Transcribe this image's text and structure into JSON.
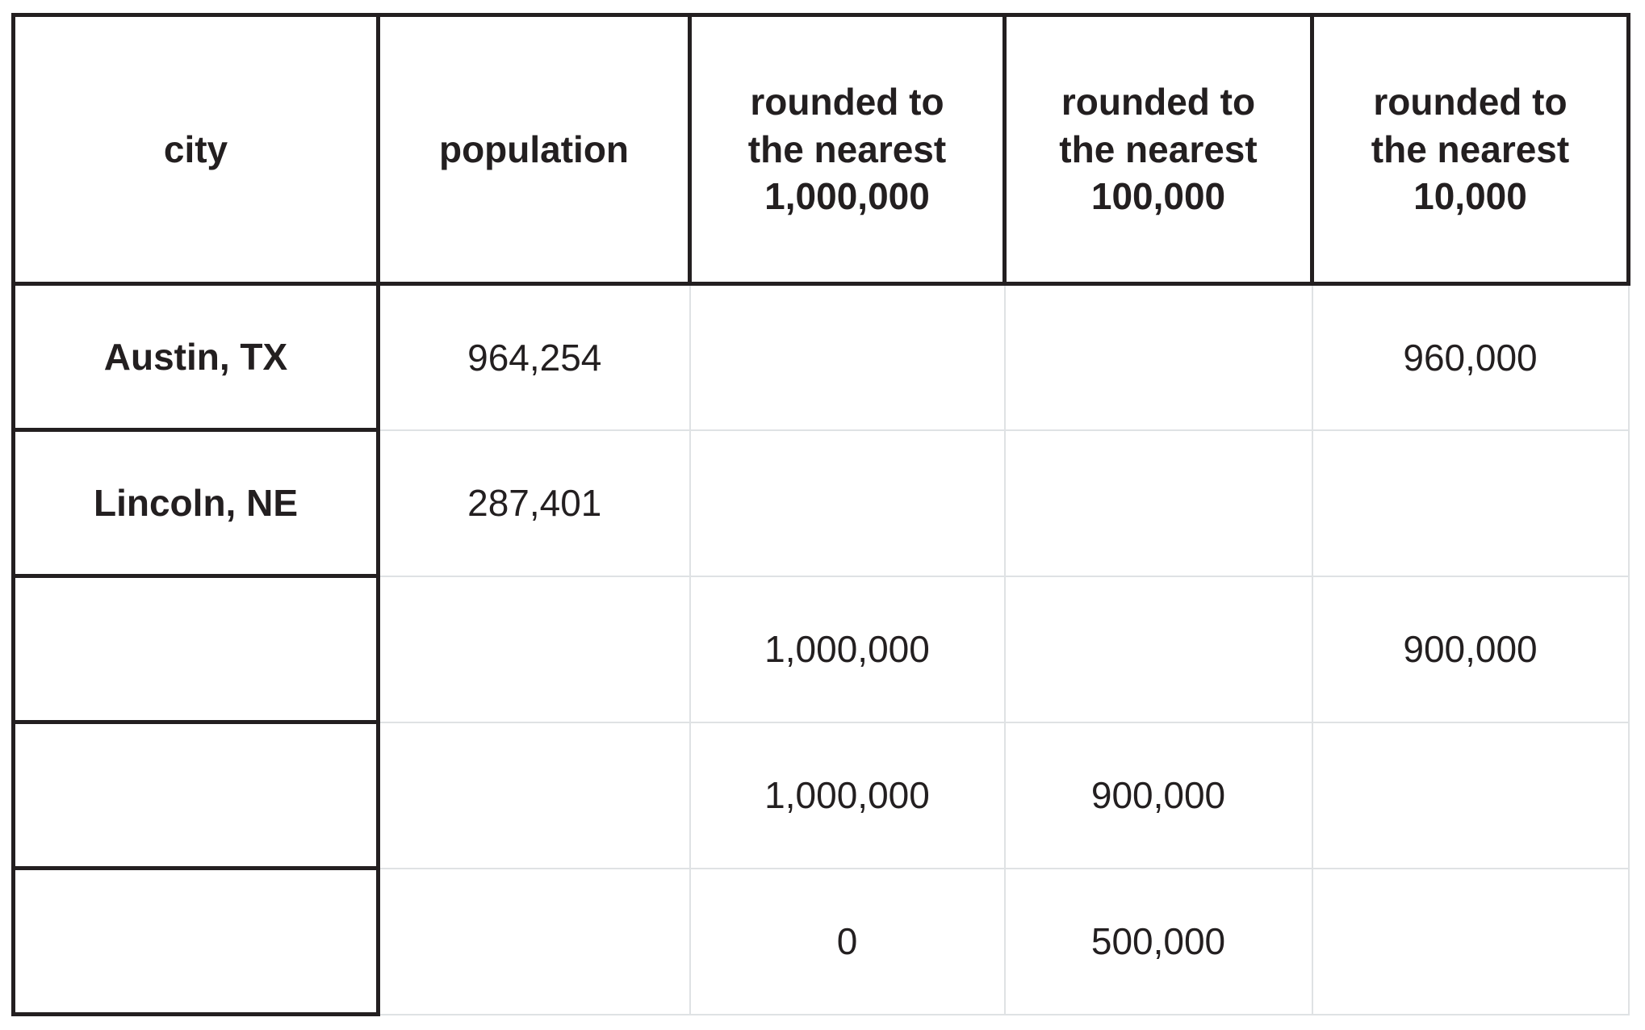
{
  "colors": {
    "text": "#231f20",
    "strong_border": "#231f20",
    "light_border": "#dfe2e4",
    "background": "#ffffff"
  },
  "table": {
    "columns": [
      {
        "key": "city",
        "label": "city",
        "lines": [
          "city"
        ]
      },
      {
        "key": "population",
        "label": "population",
        "lines": [
          "population"
        ]
      },
      {
        "key": "nearest_1000000",
        "label": "rounded to the nearest 1,000,000",
        "lines": [
          "rounded to",
          "the nearest",
          "1,000,000"
        ]
      },
      {
        "key": "nearest_100000",
        "label": "rounded to the nearest 100,000",
        "lines": [
          "rounded to",
          "the nearest",
          "100,000"
        ]
      },
      {
        "key": "nearest_10000",
        "label": "rounded to the nearest 10,000",
        "lines": [
          "rounded to",
          "the nearest",
          "10,000"
        ]
      }
    ],
    "rows": [
      {
        "cells": [
          "Austin, TX",
          "964,254",
          "",
          "",
          "960,000"
        ]
      },
      {
        "cells": [
          "Lincoln, NE",
          "287,401",
          "",
          "",
          ""
        ]
      },
      {
        "cells": [
          "",
          "",
          "1,000,000",
          "",
          "900,000"
        ]
      },
      {
        "cells": [
          "",
          "",
          "1,000,000",
          "900,000",
          ""
        ]
      },
      {
        "cells": [
          "",
          "",
          "0",
          "500,000",
          ""
        ]
      }
    ]
  },
  "chart_data": {
    "type": "table",
    "title": "",
    "columns": [
      "city",
      "population",
      "rounded to the nearest 1,000,000",
      "rounded to the nearest 100,000",
      "rounded to the nearest 10,000"
    ],
    "rows": [
      [
        "Austin, TX",
        "964,254",
        "",
        "",
        "960,000"
      ],
      [
        "Lincoln, NE",
        "287,401",
        "",
        "",
        ""
      ],
      [
        "",
        "",
        "1,000,000",
        "",
        "900,000"
      ],
      [
        "",
        "",
        "1,000,000",
        "900,000",
        ""
      ],
      [
        "",
        "",
        "0",
        "500,000",
        ""
      ]
    ]
  }
}
